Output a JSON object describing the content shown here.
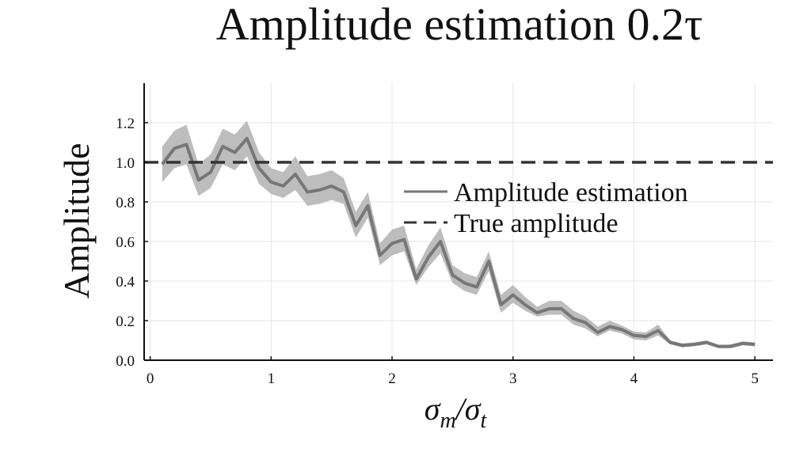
{
  "chart_data": {
    "type": "line",
    "title": "Amplitude estimation 0.2τ",
    "xlabel": {
      "main": "σ",
      "sub1": "m",
      "mid": "/σ",
      "sub2": "t"
    },
    "ylabel": "Amplitude",
    "xlim": [
      -0.05,
      5.15
    ],
    "ylim": [
      0.0,
      1.4
    ],
    "x_ticks": [
      0,
      1,
      2,
      3,
      4,
      5
    ],
    "x_tick_labels": [
      "0",
      "1",
      "2",
      "3",
      "4",
      "5"
    ],
    "y_ticks": [
      0.0,
      0.2,
      0.4,
      0.6,
      0.8,
      1.0,
      1.2
    ],
    "y_tick_labels": [
      "0.0",
      "0.2",
      "0.4",
      "0.6",
      "0.8",
      "1.0",
      "1.2"
    ],
    "grid": true,
    "legend_position": "right, upper-middle",
    "series": [
      {
        "name": "Amplitude estimation",
        "style": "solid",
        "color": "#777777",
        "band_color": "#bdbdbd",
        "x": [
          0.1,
          0.2,
          0.3,
          0.4,
          0.5,
          0.6,
          0.7,
          0.8,
          0.9,
          1.0,
          1.1,
          1.2,
          1.3,
          1.4,
          1.5,
          1.6,
          1.7,
          1.8,
          1.9,
          2.0,
          2.1,
          2.2,
          2.3,
          2.4,
          2.5,
          2.6,
          2.7,
          2.8,
          2.9,
          3.0,
          3.1,
          3.2,
          3.3,
          3.4,
          3.5,
          3.6,
          3.7,
          3.8,
          3.9,
          4.0,
          4.1,
          4.2,
          4.3,
          4.4,
          4.5,
          4.6,
          4.7,
          4.8,
          4.9,
          5.0
        ],
        "y": [
          0.99,
          1.07,
          1.09,
          0.91,
          0.95,
          1.08,
          1.05,
          1.12,
          0.97,
          0.9,
          0.88,
          0.94,
          0.85,
          0.86,
          0.88,
          0.85,
          0.68,
          0.78,
          0.53,
          0.59,
          0.61,
          0.41,
          0.52,
          0.6,
          0.43,
          0.39,
          0.37,
          0.5,
          0.28,
          0.33,
          0.28,
          0.24,
          0.26,
          0.26,
          0.21,
          0.19,
          0.14,
          0.17,
          0.155,
          0.125,
          0.12,
          0.15,
          0.09,
          0.075,
          0.08,
          0.09,
          0.07,
          0.07,
          0.085,
          0.08
        ],
        "lower": [
          0.9,
          0.97,
          0.99,
          0.83,
          0.87,
          0.99,
          0.96,
          1.03,
          0.89,
          0.84,
          0.82,
          0.86,
          0.78,
          0.79,
          0.81,
          0.79,
          0.62,
          0.72,
          0.48,
          0.53,
          0.55,
          0.38,
          0.47,
          0.54,
          0.39,
          0.35,
          0.33,
          0.45,
          0.24,
          0.29,
          0.25,
          0.22,
          0.23,
          0.23,
          0.18,
          0.16,
          0.12,
          0.15,
          0.135,
          0.105,
          0.1,
          0.125,
          0.08,
          0.065,
          0.07,
          0.08,
          0.06,
          0.06,
          0.075,
          0.07
        ],
        "upper": [
          1.08,
          1.16,
          1.19,
          0.99,
          1.04,
          1.17,
          1.14,
          1.21,
          1.05,
          0.97,
          0.95,
          1.03,
          0.93,
          0.94,
          0.96,
          0.92,
          0.75,
          0.85,
          0.59,
          0.66,
          0.68,
          0.46,
          0.58,
          0.67,
          0.48,
          0.44,
          0.42,
          0.55,
          0.33,
          0.38,
          0.32,
          0.27,
          0.3,
          0.3,
          0.25,
          0.22,
          0.17,
          0.2,
          0.175,
          0.145,
          0.14,
          0.18,
          0.1,
          0.085,
          0.09,
          0.1,
          0.075,
          0.08,
          0.095,
          0.09
        ]
      },
      {
        "name": "True amplitude",
        "style": "dashed",
        "color": "#333333",
        "x": [
          -0.05,
          5.15
        ],
        "y": [
          1.0,
          1.0
        ]
      }
    ]
  }
}
